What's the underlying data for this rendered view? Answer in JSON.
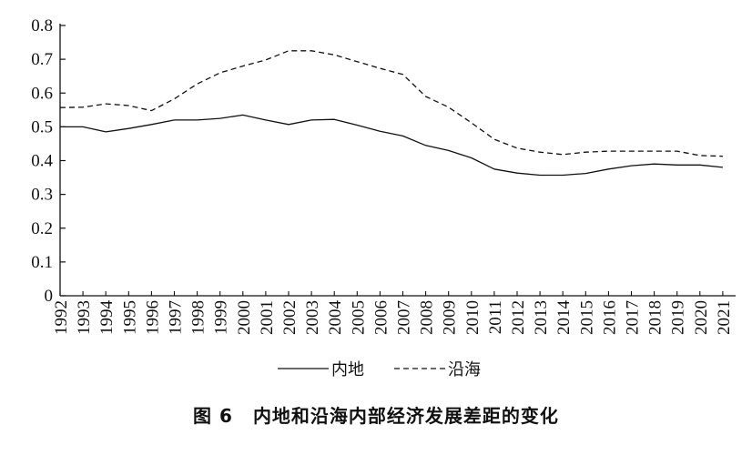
{
  "chart_data": {
    "type": "line",
    "title": "",
    "xlabel": "",
    "ylabel": "",
    "x": [
      "1992",
      "1993",
      "1994",
      "1995",
      "1996",
      "1997",
      "1998",
      "1999",
      "2000",
      "2001",
      "2002",
      "2003",
      "2004",
      "2005",
      "2006",
      "2007",
      "2008",
      "2009",
      "2010",
      "2011",
      "2012",
      "2013",
      "2014",
      "2015",
      "2016",
      "2017",
      "2018",
      "2019",
      "2020",
      "2021"
    ],
    "ylim": [
      0,
      0.8
    ],
    "yticks": [
      "0",
      "0.1",
      "0.2",
      "0.3",
      "0.4",
      "0.5",
      "0.6",
      "0.7",
      "0.8"
    ],
    "legend_position": "bottom",
    "series": [
      {
        "name": "内地",
        "style": "solid",
        "color": "#111111",
        "values": [
          0.5,
          0.5,
          0.485,
          0.495,
          0.507,
          0.52,
          0.52,
          0.525,
          0.535,
          0.52,
          0.507,
          0.52,
          0.522,
          0.505,
          0.487,
          0.473,
          0.445,
          0.43,
          0.408,
          0.375,
          0.363,
          0.357,
          0.357,
          0.362,
          0.375,
          0.385,
          0.39,
          0.387,
          0.387,
          0.38
        ]
      },
      {
        "name": "沿海",
        "style": "dashed",
        "color": "#111111",
        "values": [
          0.557,
          0.558,
          0.568,
          0.563,
          0.548,
          0.583,
          0.627,
          0.66,
          0.68,
          0.698,
          0.725,
          0.725,
          0.713,
          0.693,
          0.673,
          0.655,
          0.59,
          0.558,
          0.512,
          0.463,
          0.437,
          0.425,
          0.418,
          0.425,
          0.428,
          0.428,
          0.428,
          0.428,
          0.415,
          0.413
        ]
      }
    ]
  },
  "caption": {
    "figure_no": "图 6",
    "text": "内地和沿海内部经济发展差距的变化"
  }
}
